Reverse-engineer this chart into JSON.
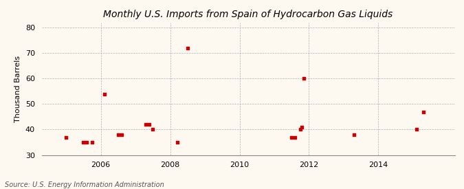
{
  "title": "Monthly U.S. Imports from Spain of Hydrocarbon Gas Liquids",
  "ylabel": "Thousand Barrels",
  "source": "Source: U.S. Energy Information Administration",
  "background_color": "#fef9f0",
  "scatter_color": "#cc0000",
  "xlim": [
    2004.3,
    2016.2
  ],
  "ylim": [
    30,
    82
  ],
  "xticks": [
    2006,
    2008,
    2010,
    2012,
    2014
  ],
  "yticks": [
    30,
    40,
    50,
    60,
    70,
    80
  ],
  "points": [
    [
      2005.0,
      37
    ],
    [
      2005.5,
      35
    ],
    [
      2005.6,
      35
    ],
    [
      2005.75,
      35
    ],
    [
      2006.1,
      54
    ],
    [
      2006.5,
      38
    ],
    [
      2006.6,
      38
    ],
    [
      2007.3,
      42
    ],
    [
      2007.4,
      42
    ],
    [
      2007.5,
      40
    ],
    [
      2008.2,
      35
    ],
    [
      2008.5,
      72
    ],
    [
      2011.5,
      37
    ],
    [
      2011.6,
      37
    ],
    [
      2011.75,
      40
    ],
    [
      2011.8,
      41
    ],
    [
      2011.85,
      60
    ],
    [
      2013.3,
      38
    ],
    [
      2015.1,
      40
    ],
    [
      2015.3,
      47
    ]
  ]
}
